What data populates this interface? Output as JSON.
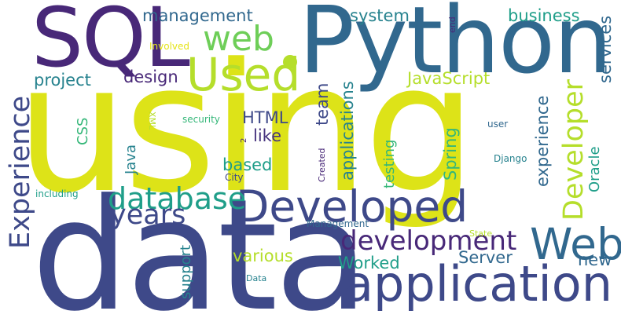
{
  "palette": {
    "dark_purple": "#482878",
    "purple": "#46337e",
    "indigo": "#3e4989",
    "blue": "#31688e",
    "steel_blue": "#26828e",
    "teal": "#1f9e89",
    "sea_green": "#35b779",
    "green": "#6ece58",
    "yellow_green": "#b5de2b",
    "yellow": "#dde318",
    "light_yellow": "#e5e419"
  },
  "words": [
    {
      "text": "using"
    },
    {
      "text": "data"
    },
    {
      "text": "Python"
    },
    {
      "text": "SQL"
    },
    {
      "text": "application"
    },
    {
      "text": "Developed"
    },
    {
      "text": "Used"
    },
    {
      "text": "web"
    },
    {
      "text": "Web"
    },
    {
      "text": "database"
    },
    {
      "text": "development"
    },
    {
      "text": "Experience"
    },
    {
      "text": "years"
    },
    {
      "text": "Developer"
    },
    {
      "text": "project"
    },
    {
      "text": "design"
    },
    {
      "text": "management"
    },
    {
      "text": "system"
    },
    {
      "text": "business"
    },
    {
      "text": "services"
    },
    {
      "text": "JavaScript"
    },
    {
      "text": "applications"
    },
    {
      "text": "team"
    },
    {
      "text": "HTML"
    },
    {
      "text": "like"
    },
    {
      "text": "based"
    },
    {
      "text": "Java"
    },
    {
      "text": "CSS"
    },
    {
      "text": "testing"
    },
    {
      "text": "Spring"
    },
    {
      "text": "experience"
    },
    {
      "text": "Oracle"
    },
    {
      "text": "various"
    },
    {
      "text": "Worked"
    },
    {
      "text": "Server"
    },
    {
      "text": "new"
    },
    {
      "text": "support"
    },
    {
      "text": "Involved"
    },
    {
      "text": "XML"
    },
    {
      "text": "security"
    },
    {
      "text": "Created"
    },
    {
      "text": "Django"
    },
    {
      "text": "user"
    },
    {
      "text": "including"
    },
    {
      "text": "City"
    },
    {
      "text": "Management"
    },
    {
      "text": "State"
    },
    {
      "text": "Data"
    },
    {
      "text": "end"
    },
    {
      "text": "2"
    }
  ]
}
